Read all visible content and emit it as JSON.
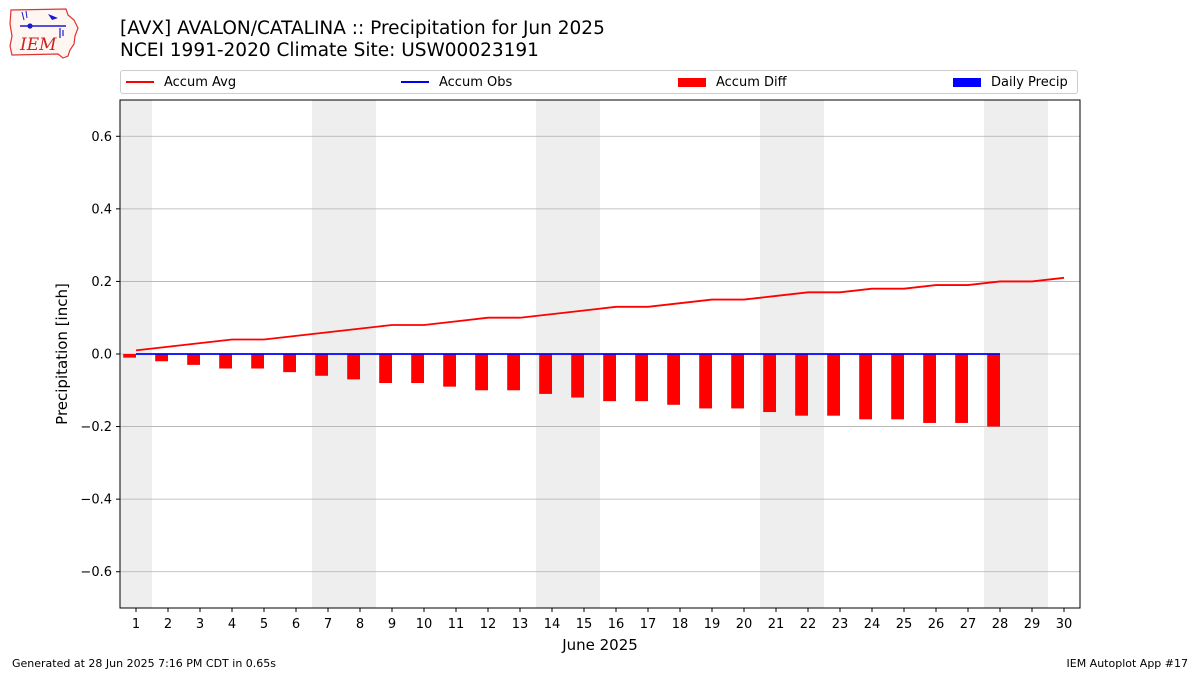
{
  "title_line1": "[AVX] AVALON/CATALINA :: Precipitation for Jun 2025",
  "title_line2": "NCEI 1991-2020 Climate Site: USW00023191",
  "logo_text": "IEM",
  "footer_left": "Generated at 28 Jun 2025 7:16 PM CDT in 0.65s",
  "footer_right": "IEM Autoplot App #17",
  "colors": {
    "accum_avg": "#ff0000",
    "accum_obs": "#0000ff",
    "accum_diff": "#ff0000",
    "daily_precip": "#0000ff",
    "weekend_shade": "#eeeeee",
    "grid": "#b0b0b0"
  },
  "legend": [
    {
      "label": "Accum Avg",
      "type": "line",
      "color": "#ff0000"
    },
    {
      "label": "Accum Obs",
      "type": "line",
      "color": "#0000ff"
    },
    {
      "label": "Accum Diff",
      "type": "bar",
      "color": "#ff0000"
    },
    {
      "label": "Daily Precip",
      "type": "bar",
      "color": "#0000ff"
    }
  ],
  "chart_data": {
    "type": "bar",
    "xlabel": "June 2025",
    "ylabel": "Precipitation [inch]",
    "xlim": [
      0.5,
      30.5
    ],
    "ylim": [
      -0.7,
      0.7
    ],
    "yticks": [
      -0.6,
      -0.4,
      -0.2,
      0.0,
      0.2,
      0.4,
      0.6
    ],
    "ytick_labels": [
      "−0.6",
      "−0.4",
      "−0.2",
      "0.0",
      "0.2",
      "0.4",
      "0.6"
    ],
    "days": [
      1,
      2,
      3,
      4,
      5,
      6,
      7,
      8,
      9,
      10,
      11,
      12,
      13,
      14,
      15,
      16,
      17,
      18,
      19,
      20,
      21,
      22,
      23,
      24,
      25,
      26,
      27,
      28,
      29,
      30
    ],
    "weekend_spans": [
      [
        0.5,
        1.5
      ],
      [
        6.5,
        8.5
      ],
      [
        13.5,
        15.5
      ],
      [
        20.5,
        22.5
      ],
      [
        27.5,
        29.5
      ]
    ],
    "grid": true,
    "legend_position": "top",
    "series": [
      {
        "name": "Accum Avg",
        "type": "line",
        "x": [
          1,
          2,
          3,
          4,
          5,
          6,
          7,
          8,
          9,
          10,
          11,
          12,
          13,
          14,
          15,
          16,
          17,
          18,
          19,
          20,
          21,
          22,
          23,
          24,
          25,
          26,
          27,
          28,
          29,
          30
        ],
        "values": [
          0.01,
          0.02,
          0.03,
          0.04,
          0.04,
          0.05,
          0.06,
          0.07,
          0.08,
          0.08,
          0.09,
          0.1,
          0.1,
          0.11,
          0.12,
          0.13,
          0.13,
          0.14,
          0.15,
          0.15,
          0.16,
          0.17,
          0.17,
          0.18,
          0.18,
          0.19,
          0.19,
          0.2,
          0.2,
          0.21
        ]
      },
      {
        "name": "Accum Obs",
        "type": "line",
        "x": [
          1,
          2,
          3,
          4,
          5,
          6,
          7,
          8,
          9,
          10,
          11,
          12,
          13,
          14,
          15,
          16,
          17,
          18,
          19,
          20,
          21,
          22,
          23,
          24,
          25,
          26,
          27,
          28
        ],
        "values": [
          0,
          0,
          0,
          0,
          0,
          0,
          0,
          0,
          0,
          0,
          0,
          0,
          0,
          0,
          0,
          0,
          0,
          0,
          0,
          0,
          0,
          0,
          0,
          0,
          0,
          0,
          0,
          0
        ]
      },
      {
        "name": "Accum Diff",
        "type": "bar",
        "x": [
          1,
          2,
          3,
          4,
          5,
          6,
          7,
          8,
          9,
          10,
          11,
          12,
          13,
          14,
          15,
          16,
          17,
          18,
          19,
          20,
          21,
          22,
          23,
          24,
          25,
          26,
          27,
          28
        ],
        "values": [
          -0.01,
          -0.02,
          -0.03,
          -0.04,
          -0.04,
          -0.05,
          -0.06,
          -0.07,
          -0.08,
          -0.08,
          -0.09,
          -0.1,
          -0.1,
          -0.11,
          -0.12,
          -0.13,
          -0.13,
          -0.14,
          -0.15,
          -0.15,
          -0.16,
          -0.17,
          -0.17,
          -0.18,
          -0.18,
          -0.19,
          -0.19,
          -0.2
        ]
      },
      {
        "name": "Daily Precip",
        "type": "bar",
        "x": [
          1,
          2,
          3,
          4,
          5,
          6,
          7,
          8,
          9,
          10,
          11,
          12,
          13,
          14,
          15,
          16,
          17,
          18,
          19,
          20,
          21,
          22,
          23,
          24,
          25,
          26,
          27,
          28
        ],
        "values": [
          0,
          0,
          0,
          0,
          0,
          0,
          0,
          0,
          0,
          0,
          0,
          0,
          0,
          0,
          0,
          0,
          0,
          0,
          0,
          0,
          0,
          0,
          0,
          0,
          0,
          0,
          0,
          0
        ]
      }
    ]
  }
}
